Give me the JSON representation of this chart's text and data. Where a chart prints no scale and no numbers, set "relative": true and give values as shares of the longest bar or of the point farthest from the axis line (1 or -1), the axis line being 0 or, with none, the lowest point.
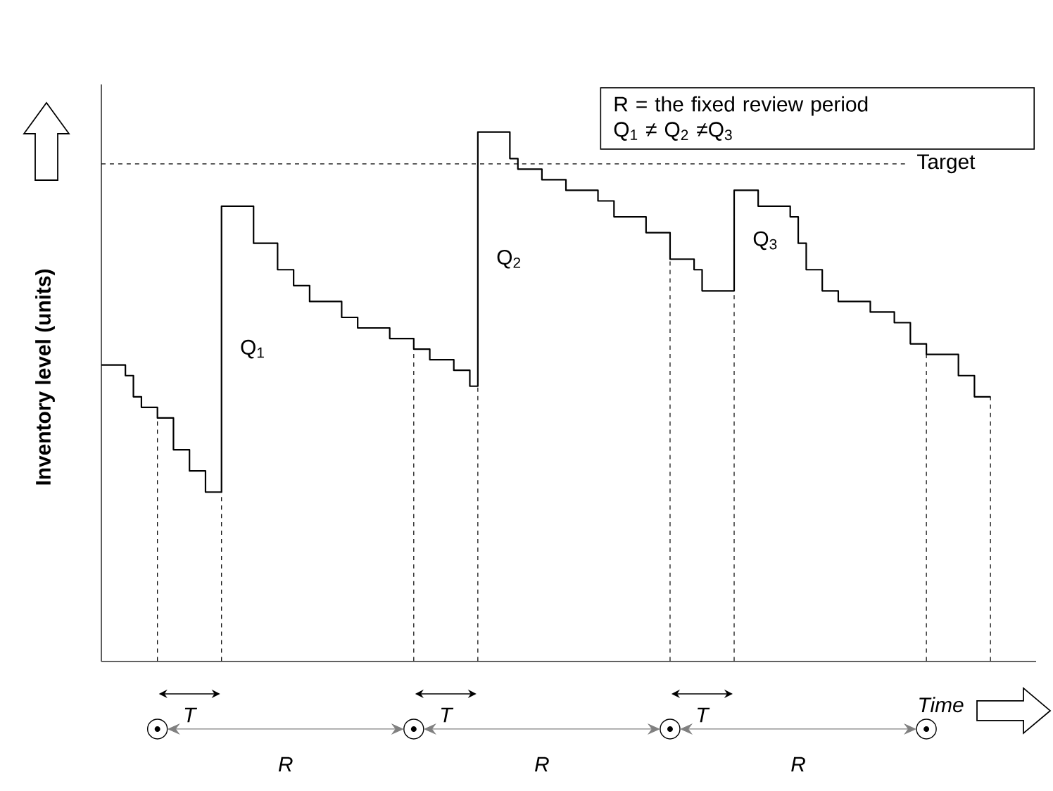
{
  "chart_data": {
    "type": "step",
    "relative": true,
    "xlabel": "Time",
    "ylabel": "Inventory level (units)",
    "marker": "none",
    "categories": [
      null,
      null,
      null,
      null,
      null,
      null,
      null,
      null,
      null,
      null,
      null,
      null,
      null,
      null,
      null,
      null,
      null,
      null,
      null,
      null,
      null,
      null,
      null,
      null,
      null,
      null,
      null,
      null,
      null,
      null,
      null,
      null,
      null,
      null,
      null,
      null,
      null,
      null,
      null,
      null,
      null,
      null,
      null,
      null,
      null,
      null,
      null,
      null,
      null,
      null,
      null,
      null,
      null,
      null,
      null,
      null,
      null,
      null,
      null,
      null,
      null,
      null,
      null,
      null,
      null,
      null,
      null,
      null,
      null,
      null,
      null,
      null,
      null,
      null,
      null,
      null,
      null,
      null,
      null,
      null,
      null,
      null,
      null,
      null,
      null,
      null,
      null,
      null,
      null,
      null,
      null,
      null,
      null,
      null,
      null,
      null,
      null,
      null,
      null,
      null,
      null,
      null,
      null,
      null,
      null,
      null,
      null,
      null,
      null,
      null,
      null,
      null
    ],
    "series": [
      {
        "color": "#000000",
        "values": [
          0.56,
          0.56,
          0.56,
          0.54,
          0.5,
          0.48,
          0.48,
          0.46,
          0.46,
          0.4,
          0.4,
          0.36,
          0.36,
          0.32,
          0.32,
          0.86,
          0.86,
          0.86,
          0.86,
          0.79,
          0.79,
          0.79,
          0.74,
          0.74,
          0.71,
          0.71,
          0.68,
          0.68,
          0.68,
          0.68,
          0.65,
          0.65,
          0.63,
          0.63,
          0.63,
          0.63,
          0.61,
          0.61,
          0.61,
          0.59,
          0.59,
          0.57,
          0.57,
          0.57,
          0.55,
          0.55,
          0.52,
          1.0,
          1.0,
          1.0,
          1.0,
          0.95,
          0.93,
          0.93,
          0.93,
          0.91,
          0.91,
          0.91,
          0.89,
          0.89,
          0.89,
          0.89,
          0.87,
          0.87,
          0.84,
          0.84,
          0.84,
          0.84,
          0.81,
          0.81,
          0.81,
          0.76,
          0.76,
          0.76,
          0.74,
          0.7,
          0.7,
          0.7,
          0.7,
          0.89,
          0.89,
          0.89,
          0.86,
          0.86,
          0.86,
          0.86,
          0.84,
          0.79,
          0.74,
          0.74,
          0.7,
          0.7,
          0.68,
          0.68,
          0.68,
          0.68,
          0.66,
          0.66,
          0.66,
          0.64,
          0.64,
          0.6,
          0.6,
          0.58,
          0.58,
          0.58,
          0.58,
          0.54,
          0.54,
          0.5,
          0.5,
          0.5
        ]
      }
    ],
    "ref_lines": [
      {
        "axis": "y",
        "value": 0.94,
        "label": "Target",
        "line_style": "dashed",
        "color": "#000000"
      }
    ],
    "annotations": [
      "R = the fixed review period",
      "Q$_{1}$ ≠ Q$_{2}$ ≠Q$_{3}$",
      "Q$_{1}$",
      "Q$_{2}$",
      "Q$_{3}$",
      "T",
      "T",
      "T",
      "R",
      "R",
      "R"
    ]
  }
}
